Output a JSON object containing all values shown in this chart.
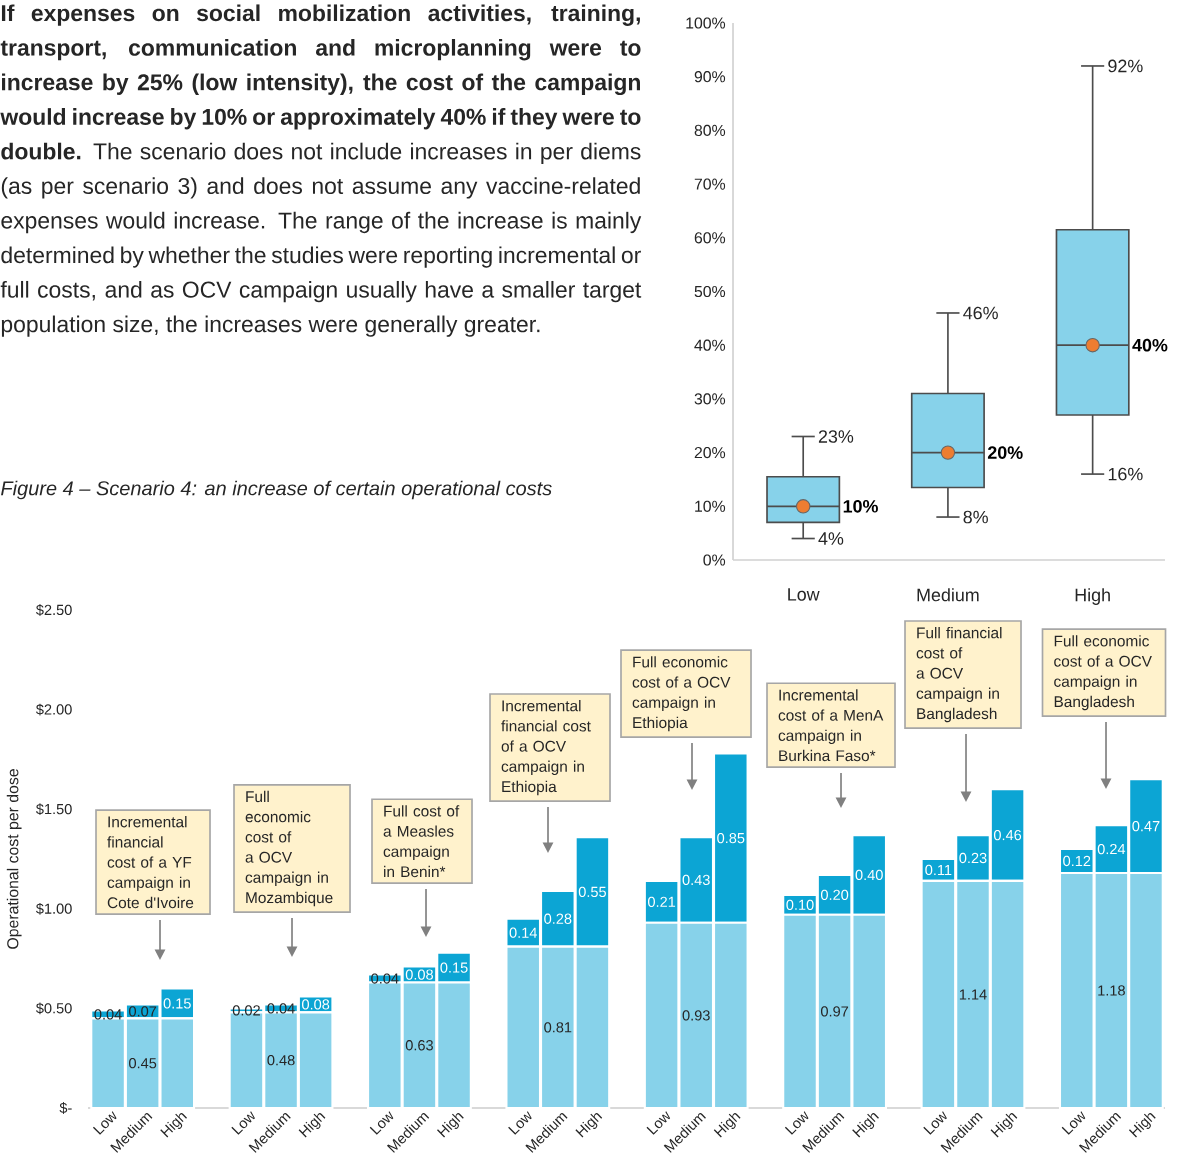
{
  "chart_data": [
    {
      "type": "box",
      "categories": [
        "Low",
        "Medium",
        "High"
      ],
      "series": [
        {
          "color": "#87d2ea",
          "boxes": [
            {
              "low": 4,
              "q1": 7,
              "median": 10,
              "q3": 15.5,
              "high": 23,
              "mean": 10
            },
            {
              "low": 8,
              "q1": 13.5,
              "median": 20,
              "q3": 31,
              "high": 46,
              "mean": 20
            },
            {
              "low": 16,
              "q1": 27,
              "median": 40,
              "q3": 61.5,
              "high": 92,
              "mean": 40
            }
          ]
        }
      ],
      "ylim": [
        0,
        100
      ],
      "yticks": [
        {
          "value": 0,
          "label": "0%"
        },
        {
          "value": 10,
          "label": "10%"
        },
        {
          "value": 20,
          "label": "20%"
        },
        {
          "value": 30,
          "label": "30%"
        },
        {
          "value": 40,
          "label": "40%"
        },
        {
          "value": 50,
          "label": "50%"
        },
        {
          "value": 60,
          "label": "60%"
        },
        {
          "value": 70,
          "label": "70%"
        },
        {
          "value": 80,
          "label": "80%"
        },
        {
          "value": 90,
          "label": "90%"
        },
        {
          "value": 100,
          "label": "100%"
        }
      ],
      "annotations": [
        "**If expenses on social mobilization activities, training, transport, communication and microplanning were to increase by 25% (low intensity), the cost of the campaign would increase by 10% or approximately 40% if they were to double.** The scenario does not include increases in per diems (as per scenario 3) and does not assume any vaccine-related expenses would increase. The range of the increase is mainly determined by whether the studies were reporting incremental or full costs, and as OCV campaign usually have a smaller target population size, the increases were generally greater.",
        "Figure 4 – Scenario 4: an increase of certain operational costs",
        {
          "text": "23%",
          "x": "Low",
          "y": 23
        },
        {
          "text": "10%",
          "x": "Low",
          "y": 10
        },
        {
          "text": "4%",
          "x": "Low",
          "y": 4
        },
        {
          "text": "46%",
          "x": "Medium",
          "y": 46
        },
        {
          "text": "20%",
          "x": "Medium",
          "y": 20
        },
        {
          "text": "8%",
          "x": "Medium",
          "y": 8
        },
        {
          "text": "92%",
          "x": "High",
          "y": 92
        },
        {
          "text": "40%",
          "x": "High",
          "y": 40
        },
        {
          "text": "16%",
          "x": "High",
          "y": 16
        }
      ]
    },
    {
      "type": "bar",
      "stacked": true,
      "ylabel": "Operational cost per dose",
      "categories": [
        "Low",
        "Medium",
        "High",
        null,
        "Low",
        "Medium",
        "High",
        null,
        "Low",
        "Medium",
        "High",
        null,
        "Low",
        "Medium",
        "High",
        null,
        "Low",
        "Medium",
        "High",
        null,
        "Low",
        "Medium",
        "High",
        null,
        "Low",
        "Medium",
        "High",
        null,
        "Low",
        "Medium",
        "High"
      ],
      "series": [
        {
          "color": "#87d2ea",
          "values": [
            0.45,
            0.45,
            0.45,
            null,
            0.48,
            0.48,
            0.48,
            null,
            0.63,
            0.63,
            0.63,
            null,
            0.81,
            0.81,
            0.81,
            null,
            0.93,
            0.93,
            0.93,
            null,
            0.97,
            0.97,
            0.97,
            null,
            1.14,
            1.14,
            1.14,
            null,
            1.18,
            1.18,
            1.18
          ],
          "value_labels": [
            null,
            "0.45",
            null,
            null,
            null,
            "0.48",
            null,
            null,
            null,
            "0.63",
            null,
            null,
            null,
            "0.81",
            null,
            null,
            null,
            "0.93",
            null,
            null,
            null,
            "0.97",
            null,
            null,
            null,
            "1.14",
            null,
            null,
            null,
            "1.18",
            null
          ]
        },
        {
          "color": "#0ca5d4",
          "values": [
            0.04,
            0.07,
            0.15,
            null,
            0.02,
            0.04,
            0.08,
            null,
            0.04,
            0.08,
            0.15,
            null,
            0.14,
            0.28,
            0.55,
            null,
            0.21,
            0.43,
            0.85,
            null,
            0.1,
            0.2,
            0.4,
            null,
            0.11,
            0.23,
            0.46,
            null,
            0.12,
            0.24,
            0.47
          ],
          "value_labels": [
            "0.04",
            "0.07",
            "0.15",
            null,
            "0.02",
            "0.04",
            "0.08",
            null,
            "0.04",
            "0.08",
            "0.15",
            null,
            "0.14",
            "0.28",
            "0.55",
            null,
            "0.21",
            "0.43",
            "0.85",
            null,
            "0.10",
            "0.20",
            "0.40",
            null,
            "0.11",
            "0.23",
            "0.46",
            null,
            "0.12",
            "0.24",
            "0.47"
          ]
        }
      ],
      "ylim": [
        0,
        2.5
      ],
      "yticks": [
        {
          "value": 0,
          "label": "$-"
        },
        {
          "value": 0.5,
          "label": "$0.50"
        },
        {
          "value": 1,
          "label": "$1.00"
        },
        {
          "value": 1.5,
          "label": "$1.50"
        },
        {
          "value": 2,
          "label": "$2.00"
        },
        {
          "value": 2.5,
          "label": "$2.50"
        }
      ],
      "annotations": [
        "Incremental financial cost of a YF campaign in Cote d'Ivoire",
        "Full economic cost of a OCV campaign in Mozambique",
        "Full cost of a Measles campaign in Benin*",
        "Incremental financial cost of a OCV campaign in Ethiopia",
        "Full economic cost of a OCV campaign in Ethiopia",
        "Incremental cost of a MenA campaign in Burkina Faso*",
        "Full financial cost of a OCV campaign in Bangladesh",
        "Full economic cost of a OCV campaign in Bangladesh"
      ]
    }
  ]
}
